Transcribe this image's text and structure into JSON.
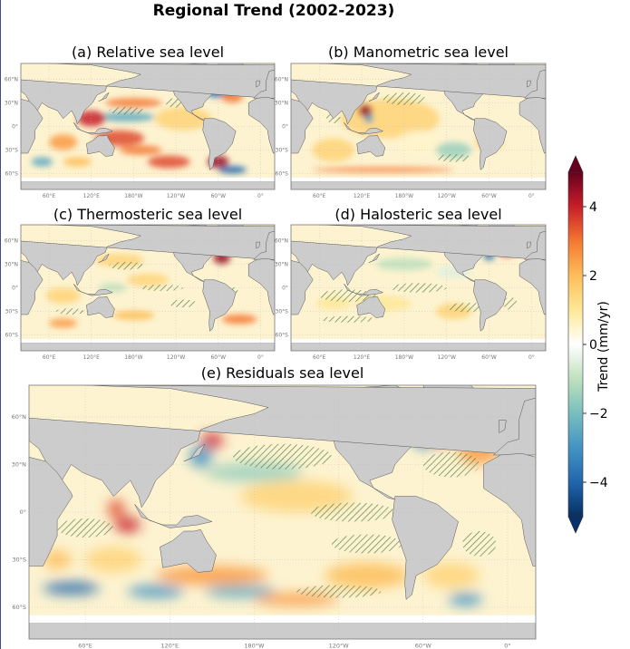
{
  "title": "Regional Trend (2002-2023)",
  "panels": [
    {
      "id": "a",
      "title": "(a) Relative sea level"
    },
    {
      "id": "b",
      "title": "(b) Manometric sea level"
    },
    {
      "id": "c",
      "title": "(c) Thermosteric sea level"
    },
    {
      "id": "d",
      "title": "(d) Halosteric sea level"
    },
    {
      "id": "e",
      "title": "(e) Residuals sea level"
    }
  ],
  "map_axes": {
    "lat_ticks": [
      "60°N",
      "30°N",
      "0°",
      "30°S",
      "60°S"
    ],
    "lat_values": [
      60,
      30,
      0,
      -30,
      -60
    ],
    "lon_ticks": [
      "60°E",
      "120°E",
      "180°W",
      "120°W",
      "60°W",
      "0°"
    ],
    "lon_values": [
      60,
      120,
      180,
      240,
      300,
      360
    ]
  },
  "colorbar": {
    "label": "Trend (mm/yr)",
    "ticks": [
      "−4",
      "−2",
      "0",
      "2",
      "4"
    ],
    "tick_values": [
      -4,
      -2,
      0,
      2,
      4
    ],
    "range": [
      -5,
      5
    ]
  },
  "chart_data": {
    "type": "heatmap",
    "title": "Regional Trend (2002-2023)",
    "colorbar_label": "Trend (mm/yr)",
    "colorbar_range": [
      -5,
      5
    ],
    "colormap": "diverging blue-green-white-yellow-red",
    "colors": {
      "land": "#cccccc",
      "hatch": "#2e6b2e",
      "low": "#08306b",
      "high": "#67001f"
    },
    "panels": [
      {
        "name": "(a) Relative sea level",
        "blobs": [
          {
            "lon": 180,
            "lat": 30,
            "value": 3,
            "rlon": 40,
            "rlat": 6
          },
          {
            "lon": 170,
            "lat": 12,
            "value": -2.5,
            "rlon": 40,
            "rlat": 6
          },
          {
            "lon": 300,
            "lat": 45,
            "value": -4,
            "rlon": 20,
            "rlat": 8
          },
          {
            "lon": 320,
            "lat": 38,
            "value": 3,
            "rlon": 15,
            "rlat": 8
          },
          {
            "lon": 120,
            "lat": 10,
            "value": 4,
            "rlon": 20,
            "rlat": 10
          },
          {
            "lon": 160,
            "lat": -15,
            "value": 3.5,
            "rlon": 35,
            "rlat": 10
          },
          {
            "lon": 190,
            "lat": -30,
            "value": 3,
            "rlon": 30,
            "rlat": 6
          },
          {
            "lon": 230,
            "lat": -45,
            "value": 3.5,
            "rlon": 30,
            "rlat": 8
          },
          {
            "lon": 300,
            "lat": -45,
            "value": 4.5,
            "rlon": 15,
            "rlat": 8
          },
          {
            "lon": 320,
            "lat": -55,
            "value": -4,
            "rlon": 20,
            "rlat": 5
          },
          {
            "lon": 80,
            "lat": -20,
            "value": 2.5,
            "rlon": 20,
            "rlat": 10
          },
          {
            "lon": 50,
            "lat": -45,
            "value": -2.5,
            "rlon": 15,
            "rlat": 6
          },
          {
            "lon": 100,
            "lat": -45,
            "value": 2,
            "rlon": 20,
            "rlat": 6
          },
          {
            "lon": 250,
            "lat": 10,
            "value": 1.5,
            "rlon": 40,
            "rlat": 15
          }
        ]
      },
      {
        "name": "(b) Manometric sea level",
        "blobs": [
          {
            "lon": 160,
            "lat": 10,
            "value": 1.5,
            "rlon": 70,
            "rlat": 25
          },
          {
            "lon": 125,
            "lat": 20,
            "value": 4.5,
            "rlon": 10,
            "rlat": 8
          },
          {
            "lon": 130,
            "lat": 10,
            "value": -3,
            "rlon": 6,
            "rlat": 6
          },
          {
            "lon": 200,
            "lat": -20,
            "value": 0.5,
            "rlon": 30,
            "rlat": 15
          },
          {
            "lon": 250,
            "lat": -30,
            "value": -1.5,
            "rlon": 25,
            "rlat": 10
          },
          {
            "lon": 300,
            "lat": -20,
            "value": 1.5,
            "rlon": 20,
            "rlat": 10
          },
          {
            "lon": 80,
            "lat": -30,
            "value": 1.5,
            "rlon": 30,
            "rlat": 15
          },
          {
            "lon": 150,
            "lat": -55,
            "value": 3,
            "rlon": 100,
            "rlat": 3
          },
          {
            "lon": 320,
            "lat": 60,
            "value": 3,
            "rlon": 25,
            "rlat": 5
          }
        ]
      },
      {
        "name": "(c) Thermosteric sea level",
        "blobs": [
          {
            "lon": 305,
            "lat": 38,
            "value": 4.5,
            "rlon": 12,
            "rlat": 8
          },
          {
            "lon": 310,
            "lat": 55,
            "value": -4,
            "rlon": 18,
            "rlat": 8
          },
          {
            "lon": 160,
            "lat": 35,
            "value": 1.5,
            "rlon": 35,
            "rlat": 8
          },
          {
            "lon": 200,
            "lat": 10,
            "value": 1.5,
            "rlon": 30,
            "rlat": 8
          },
          {
            "lon": 150,
            "lat": 0,
            "value": -1,
            "rlon": 20,
            "rlat": 6
          },
          {
            "lon": 80,
            "lat": -10,
            "value": 1.5,
            "rlon": 25,
            "rlat": 10
          },
          {
            "lon": 180,
            "lat": -35,
            "value": 2,
            "rlon": 30,
            "rlat": 6
          },
          {
            "lon": 330,
            "lat": -40,
            "value": 3,
            "rlon": 25,
            "rlat": 6
          },
          {
            "lon": 80,
            "lat": -45,
            "value": 2.5,
            "rlon": 20,
            "rlat": 6
          }
        ]
      },
      {
        "name": "(d) Halosteric sea level",
        "blobs": [
          {
            "lon": 325,
            "lat": 48,
            "value": 4,
            "rlon": 12,
            "rlat": 8
          },
          {
            "lon": 300,
            "lat": 40,
            "value": -4,
            "rlon": 8,
            "rlat": 5
          },
          {
            "lon": 180,
            "lat": 30,
            "value": -1,
            "rlon": 40,
            "rlat": 8
          },
          {
            "lon": 250,
            "lat": 20,
            "value": -0.5,
            "rlon": 25,
            "rlat": 8
          },
          {
            "lon": 150,
            "lat": -20,
            "value": 1,
            "rlon": 40,
            "rlat": 10
          },
          {
            "lon": 250,
            "lat": -30,
            "value": 1.5,
            "rlon": 25,
            "rlat": 10
          },
          {
            "lon": 80,
            "lat": -20,
            "value": 1,
            "rlon": 25,
            "rlat": 8
          }
        ]
      },
      {
        "name": "(e) Residuals sea level",
        "blobs": [
          {
            "lon": 82,
            "lat": 2,
            "value": 3.5,
            "rlon": 6,
            "rlat": 6
          },
          {
            "lon": 90,
            "lat": -8,
            "value": 4,
            "rlon": 9,
            "rlat": 5
          },
          {
            "lon": 142,
            "lat": 35,
            "value": -3,
            "rlon": 8,
            "rlat": 7
          },
          {
            "lon": 150,
            "lat": 45,
            "value": 4,
            "rlon": 8,
            "rlat": 5
          },
          {
            "lon": 180,
            "lat": 25,
            "value": -1.5,
            "rlon": 35,
            "rlat": 6
          },
          {
            "lon": 210,
            "lat": 10,
            "value": 1.5,
            "rlon": 40,
            "rlat": 10
          },
          {
            "lon": 310,
            "lat": 50,
            "value": 4,
            "rlon": 12,
            "rlat": 8
          },
          {
            "lon": 300,
            "lat": 45,
            "value": -3,
            "rlon": 8,
            "rlat": 5
          },
          {
            "lon": 340,
            "lat": 40,
            "value": 2.5,
            "rlon": 15,
            "rlat": 10
          },
          {
            "lon": 50,
            "lat": -48,
            "value": -4,
            "rlon": 20,
            "rlat": 4
          },
          {
            "lon": 110,
            "lat": -50,
            "value": -3,
            "rlon": 20,
            "rlat": 4
          },
          {
            "lon": 170,
            "lat": -50,
            "value": -2.5,
            "rlon": 25,
            "rlat": 4
          },
          {
            "lon": 150,
            "lat": -40,
            "value": 2.5,
            "rlon": 40,
            "rlat": 6
          },
          {
            "lon": 210,
            "lat": -55,
            "value": 2.5,
            "rlon": 30,
            "rlat": 4
          },
          {
            "lon": 260,
            "lat": -40,
            "value": 2,
            "rlon": 30,
            "rlat": 8
          },
          {
            "lon": 320,
            "lat": -40,
            "value": 1.5,
            "rlon": 20,
            "rlat": 8
          },
          {
            "lon": 330,
            "lat": -55,
            "value": -3,
            "rlon": 12,
            "rlat": 4
          },
          {
            "lon": 80,
            "lat": -30,
            "value": 1.5,
            "rlon": 20,
            "rlat": 8
          },
          {
            "lon": 40,
            "lat": -30,
            "value": 2,
            "rlon": 10,
            "rlat": 6
          }
        ]
      }
    ]
  }
}
